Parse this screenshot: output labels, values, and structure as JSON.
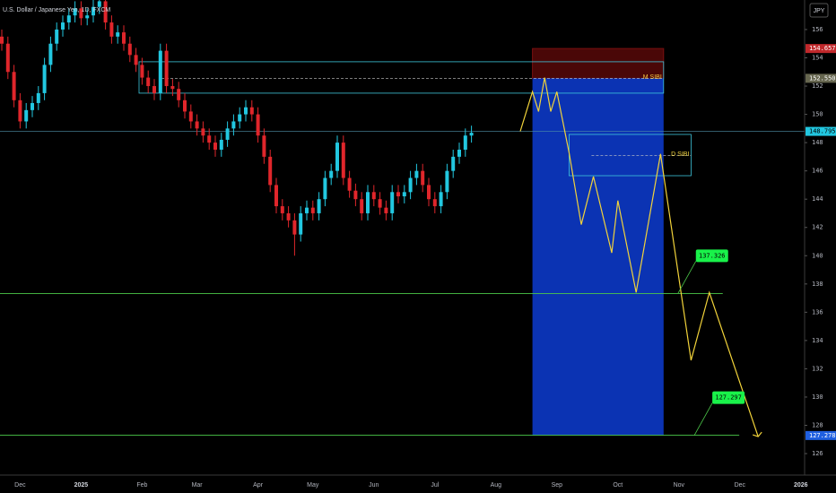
{
  "chart_data": {
    "type": "candlestick",
    "title": "U.S. Dollar / Japanese Yen, 1D, FXCM",
    "currency": "JPY",
    "categories": [
      null,
      null,
      null,
      "Dec",
      null,
      null,
      null,
      null,
      null,
      null,
      null,
      null,
      null,
      "2025",
      null,
      null,
      null,
      null,
      null,
      null,
      null,
      null,
      null,
      "Feb",
      null,
      null,
      null,
      null,
      null,
      null,
      null,
      null,
      "Mar",
      null,
      null,
      null,
      null,
      null,
      null,
      null,
      null,
      null,
      "Apr",
      null,
      null,
      null,
      null,
      null,
      null,
      null,
      null,
      "May",
      null,
      null,
      null,
      null,
      null,
      null,
      null,
      null,
      null,
      "Jun",
      null,
      null,
      null,
      null,
      null,
      null,
      null,
      null,
      null,
      "Jul",
      null,
      null,
      null,
      null,
      null,
      null,
      null,
      null,
      null,
      "Aug",
      null,
      null,
      null,
      null,
      null,
      null,
      null,
      null,
      null,
      "Sep",
      null,
      null,
      null,
      null,
      null,
      null,
      null,
      null,
      null,
      "Oct",
      null,
      null,
      null,
      null,
      null,
      null,
      null,
      null,
      null,
      "Nov",
      null,
      null,
      null,
      null,
      null,
      null,
      null,
      null,
      null,
      "Dec",
      null,
      null,
      null,
      null,
      null,
      null,
      null,
      null,
      null,
      "2026"
    ],
    "open": [
      155.5,
      155,
      153,
      151,
      149.5,
      150.3,
      150.8,
      151.5,
      153.5,
      155,
      156,
      156.5,
      157,
      157.5,
      156.8,
      157,
      157.6,
      158,
      156.5,
      155.5,
      155.8,
      155,
      154.2,
      153.5,
      152.6,
      152,
      151.5,
      154.5,
      152,
      151.8,
      151,
      150.2,
      149.5,
      149,
      148.5,
      148,
      147.5,
      148.2,
      149,
      149.5,
      150,
      150.5,
      150,
      148.5,
      147,
      145,
      143.5,
      143,
      142.5,
      141.5,
      143,
      143.4,
      143,
      144,
      145.5,
      146,
      148,
      145.5,
      144.6,
      144,
      143,
      144.5,
      144,
      143.4,
      143,
      144.5,
      144.2,
      144.5,
      145.5,
      146,
      145,
      144,
      143.5,
      144.5,
      146,
      147,
      147.5,
      148.5,
      null,
      null,
      null,
      null,
      null,
      null,
      null,
      null,
      null,
      null,
      null,
      null,
      null,
      null,
      null,
      null,
      null,
      null,
      null,
      null,
      null,
      null,
      null,
      null,
      null,
      null,
      null,
      null,
      null,
      null,
      null,
      null,
      null,
      null,
      null,
      null,
      null,
      null,
      null,
      null,
      null,
      null,
      null,
      null,
      null,
      null,
      null,
      null,
      null,
      null,
      null,
      null,
      null,
      null
    ],
    "high": [
      156,
      155.5,
      153.5,
      151.5,
      150.8,
      151.3,
      152,
      154,
      155.5,
      156.5,
      157,
      157.5,
      158,
      158,
      157.5,
      158.1,
      158.5,
      158.5,
      157,
      156.3,
      156.3,
      155.5,
      154.7,
      154,
      153.1,
      152.5,
      155,
      155,
      152.5,
      152.3,
      151.5,
      150.7,
      150,
      149.5,
      149,
      148.5,
      148.7,
      149.5,
      150,
      150.5,
      151,
      151,
      150.5,
      149,
      147.5,
      145.5,
      144,
      143.5,
      143,
      143.5,
      143.9,
      143.9,
      144.5,
      146,
      146.5,
      148.5,
      148.5,
      146,
      145.1,
      144.5,
      145,
      145,
      144.5,
      143.9,
      145,
      145,
      145,
      146,
      146.5,
      146.5,
      145.5,
      144.5,
      145,
      146.5,
      147.5,
      148,
      149,
      149.2,
      null,
      null,
      null,
      null,
      null,
      null,
      null,
      null,
      null,
      null,
      null,
      null,
      null,
      null,
      null,
      null,
      null,
      null,
      null,
      null,
      null,
      null,
      null,
      null,
      null,
      null,
      null,
      null,
      null,
      null,
      null,
      null,
      null,
      null,
      null,
      null,
      null,
      null,
      null,
      null,
      null,
      null,
      null,
      null,
      null,
      null,
      null,
      null,
      null,
      null,
      null,
      null,
      null,
      null
    ],
    "low": [
      154.5,
      152.5,
      150.5,
      149,
      149,
      149.8,
      150.3,
      151,
      153,
      154.5,
      155.5,
      156,
      156.5,
      156.3,
      156.3,
      156.5,
      157.1,
      156,
      155,
      155,
      154.5,
      153.7,
      153,
      152.1,
      151.5,
      151,
      151,
      151.5,
      151.3,
      150.5,
      149.7,
      149,
      148.5,
      148,
      147.5,
      147,
      147,
      147.7,
      148.5,
      149,
      149.5,
      149.5,
      148,
      146.5,
      144.5,
      143,
      142.5,
      142,
      140,
      141,
      142.5,
      142.5,
      142.5,
      143.5,
      145,
      145.5,
      145,
      144.1,
      143.5,
      142.5,
      142.5,
      143.5,
      142.9,
      142.5,
      142.5,
      143.7,
      143.7,
      144,
      145,
      144.5,
      143.5,
      143,
      143,
      144,
      145.5,
      146.5,
      147,
      148,
      null,
      null,
      null,
      null,
      null,
      null,
      null,
      null,
      null,
      null,
      null,
      null,
      null,
      null,
      null,
      null,
      null,
      null,
      null,
      null,
      null,
      null,
      null,
      null,
      null,
      null,
      null,
      null,
      null,
      null,
      null,
      null,
      null,
      null,
      null,
      null,
      null,
      null,
      null,
      null,
      null,
      null,
      null,
      null,
      null,
      null,
      null,
      null,
      null,
      null,
      null,
      null,
      null,
      null
    ],
    "close": [
      155,
      153,
      151,
      149.5,
      150.3,
      150.8,
      151.5,
      153.5,
      155,
      156,
      156.5,
      157,
      157.5,
      156.8,
      157,
      157.6,
      158,
      156.5,
      155.5,
      155.8,
      155,
      154.2,
      153.5,
      152.6,
      152,
      151.5,
      154.5,
      152,
      151.8,
      151,
      150.2,
      149.5,
      149,
      148.5,
      148,
      147.5,
      148.2,
      149,
      149.5,
      150,
      150.5,
      150,
      148.5,
      147,
      145,
      143.5,
      143,
      142.5,
      141.5,
      143,
      143.4,
      143,
      144,
      145.5,
      146,
      148,
      145.5,
      144.6,
      144,
      143,
      144.5,
      144,
      143.4,
      143,
      144.5,
      144.2,
      144.5,
      145.5,
      146,
      145,
      144,
      143.5,
      144.5,
      146,
      147,
      147.5,
      148.5,
      148.7,
      null,
      null,
      null,
      null,
      null,
      null,
      null,
      null,
      null,
      null,
      null,
      null,
      null,
      null,
      null,
      null,
      null,
      null,
      null,
      null,
      null,
      null,
      null,
      null,
      null,
      null,
      null,
      null,
      null,
      null,
      null,
      null,
      null,
      null,
      null,
      null,
      null,
      null,
      null,
      null,
      null,
      null,
      null,
      null,
      null,
      null,
      null,
      null,
      null,
      null,
      null,
      null,
      null,
      null
    ],
    "up_color": "#22c7e0",
    "down_color": "#e0262b",
    "ylim": [
      124.48,
      158.09
    ],
    "yticks": [
      126,
      128,
      130,
      132,
      134,
      136,
      138,
      140,
      142,
      144,
      146,
      148,
      150,
      152,
      154,
      156
    ],
    "current_price": {
      "value": 148.795,
      "color": "#4f8fa8"
    },
    "position": {
      "from": 87,
      "to": 108.5,
      "stop": 154.657,
      "entry": 152.55,
      "target": 127.278,
      "stop_color": "#4a0707",
      "target_color": "#0b33b3"
    },
    "zones": [
      {
        "name": "M SIBI",
        "top": 153.72,
        "bottom": 151.5,
        "mid": 152.55,
        "from": 22.5,
        "to": 108.5,
        "color": "#3ec6dc",
        "label_color": "#f5c542"
      },
      {
        "name": "D SIBI",
        "top": 148.58,
        "bottom": 145.66,
        "mid": 147.1,
        "from": 93,
        "to": 113,
        "color": "#3ec6dc",
        "label_color": "#f5d742"
      }
    ],
    "targets": [
      {
        "value": 137.326,
        "to": 118.2
      },
      {
        "value": 127.297,
        "to": 120.9
      }
    ],
    "target_color": "#4cc94a",
    "target_label_color": "#19f24a",
    "projection": {
      "color": "#f2d33a",
      "x": [
        85,
        87,
        88,
        89,
        90,
        91,
        93,
        95,
        97,
        100,
        101,
        104,
        108,
        113,
        116,
        124
      ],
      "values": [
        148.8,
        151.6,
        150.2,
        152.6,
        150.2,
        151.6,
        147.3,
        142.2,
        145.6,
        140.2,
        143.9,
        137.4,
        147.2,
        132.6,
        137.4,
        127.2
      ]
    },
    "badges": [
      {
        "value": 154.657,
        "color": "#c0282b",
        "text_color": "#ffffff"
      },
      {
        "value": 152.55,
        "label": "152.550",
        "color": "#66664f",
        "text_color": "#ffffff"
      },
      {
        "value": 148.795,
        "color": "#22c7e0",
        "text_color": "#000000"
      },
      {
        "value": 127.278,
        "color": "#1f5fe0",
        "text_color": "#ffffff"
      }
    ]
  }
}
